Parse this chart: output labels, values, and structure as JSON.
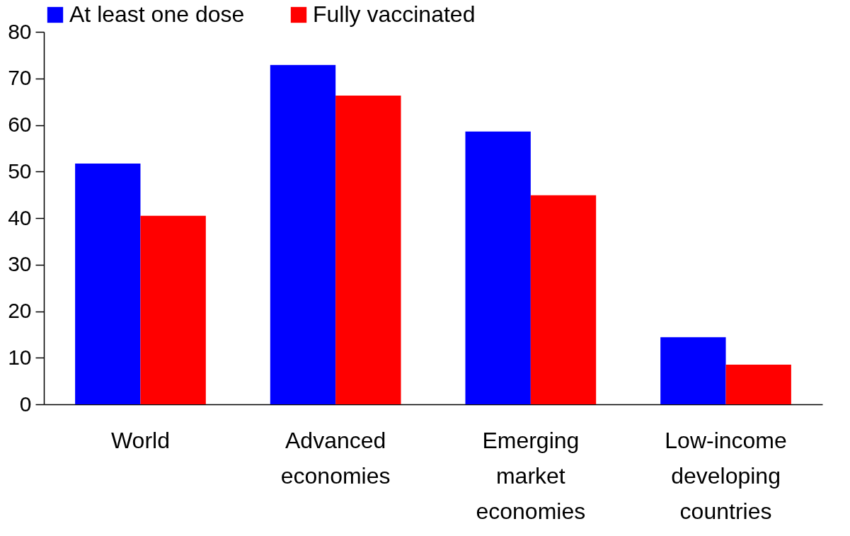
{
  "chart_data": {
    "type": "bar",
    "categories": [
      "World",
      "Advanced economies",
      "Emerging market economies",
      "Low-income developing countries"
    ],
    "series": [
      {
        "name": "At least one dose",
        "color": "#0000ff",
        "values": [
          51.7,
          72.9,
          58.6,
          14.4
        ]
      },
      {
        "name": "Fully vaccinated",
        "color": "#ff0000",
        "values": [
          40.5,
          66.3,
          44.9,
          8.5
        ]
      }
    ],
    "ylim": [
      0,
      80
    ],
    "yticks": [
      0,
      10,
      20,
      30,
      40,
      50,
      60,
      70,
      80
    ],
    "grid": false,
    "legend": "top"
  }
}
